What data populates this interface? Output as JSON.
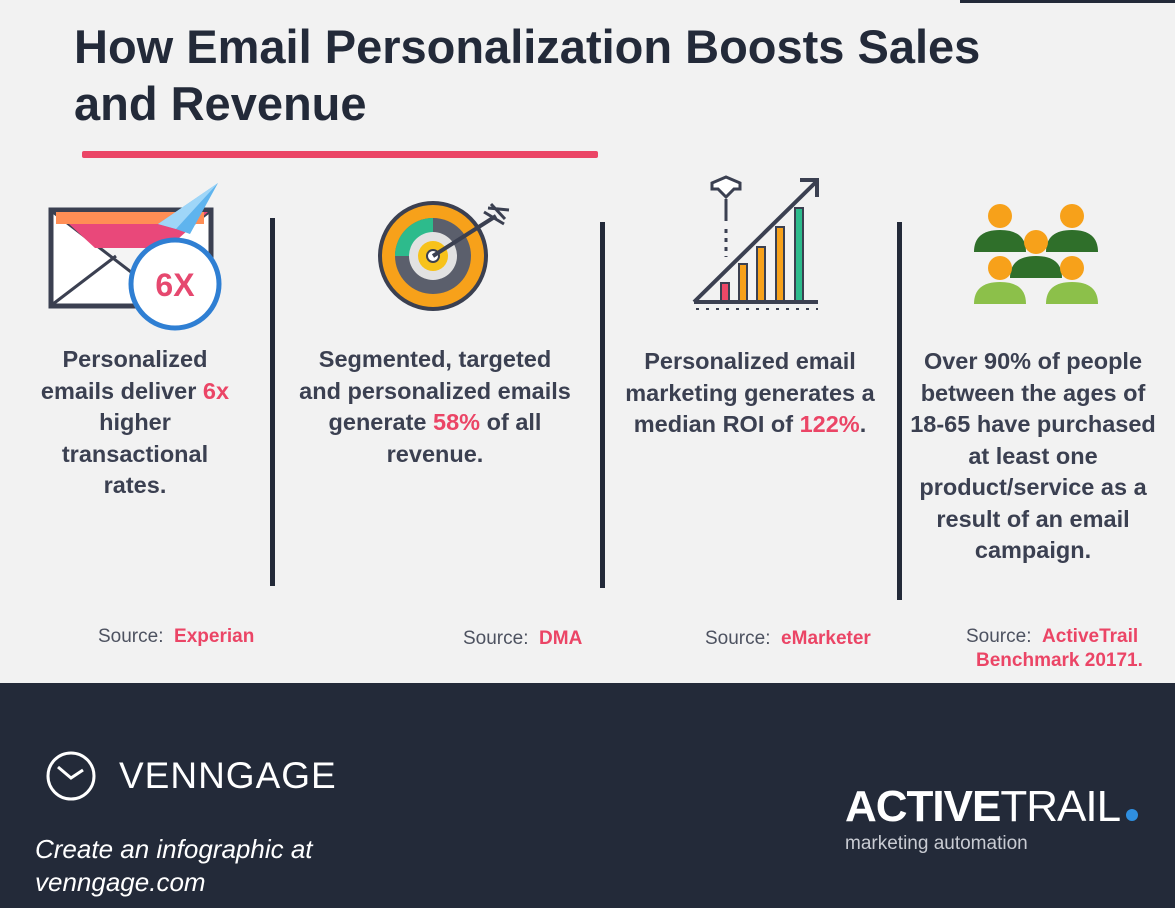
{
  "title": "How Email Personalization Boosts Sales and Revenue",
  "stats": [
    {
      "icon": "email-paper-plane-icon",
      "badge": "6X",
      "before": "Personalized emails deliver ",
      "highlight": "6x",
      "after": " higher transactional rates.",
      "source_label": "Source:",
      "source_name": "Experian"
    },
    {
      "icon": "target-arrow-icon",
      "before": "Segmented, targeted and personalized emails generate ",
      "highlight": "58%",
      "after": " of all revenue.",
      "source_label": "Source:",
      "source_name": "DMA"
    },
    {
      "icon": "growth-bar-chart-icon",
      "before": "Personalized email marketing generates a median ROI of ",
      "highlight": "122%",
      "after": ".",
      "source_label": "Source:",
      "source_name": "eMarketer"
    },
    {
      "icon": "people-group-icon",
      "before": "Over 90% of people between the ages of 18-65 have purchased at least one product/service as a result of an email campaign.",
      "highlight": "",
      "after": "",
      "source_label": "Source:",
      "source_name": "ActiveTrail",
      "source_name_line2": "Benchmark 20171."
    }
  ],
  "footer": {
    "brand": "VENNGAGE",
    "cta": "Create an infographic at venngage.com",
    "partner_bold": "ACTIVE",
    "partner_light": "TRAIL",
    "partner_tagline": "marketing automation"
  },
  "colors": {
    "accent": "#eb4566",
    "text": "#3b4051",
    "dark": "#232a39",
    "background": "#f2f2f2"
  }
}
